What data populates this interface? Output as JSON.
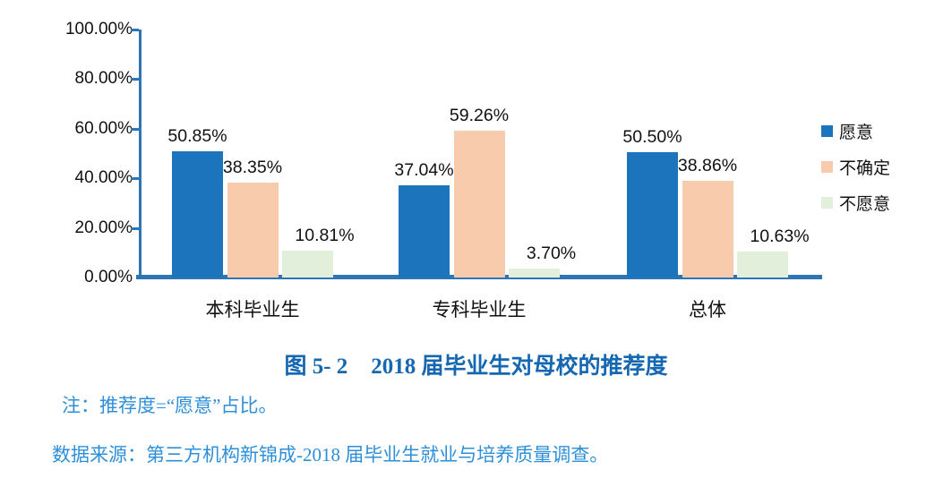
{
  "chart_data": {
    "type": "bar",
    "title": "图 5- 2　2018 届毕业生对母校的推荐度",
    "categories": [
      "本科毕业生",
      "专科毕业生",
      "总体"
    ],
    "series": [
      {
        "name": "愿意",
        "color": "#1B74BC",
        "values": [
          50.85,
          37.04,
          50.5
        ],
        "labels": [
          "50.85%",
          "37.04%",
          "50.50%"
        ]
      },
      {
        "name": "不确定",
        "color": "#F8CBAD",
        "values": [
          38.35,
          59.26,
          38.86
        ],
        "labels": [
          "38.35%",
          "59.26%",
          "38.86%"
        ]
      },
      {
        "name": "不愿意",
        "color": "#E2EFDA",
        "values": [
          10.81,
          3.7,
          10.63
        ],
        "labels": [
          "10.81%",
          "3.70%",
          "10.63%"
        ]
      }
    ],
    "y_axis": {
      "min": 0,
      "max": 100,
      "step": 20,
      "tick_labels": [
        "100.00%",
        "80.00%",
        "60.00%",
        "40.00%",
        "20.00%",
        "0.00%"
      ]
    },
    "legend": {
      "position": "right",
      "entries": [
        "愿意",
        "不确定",
        "不愿意"
      ]
    },
    "grid": false,
    "axis_color": "#2E75B6",
    "xlabel": "",
    "ylabel": ""
  },
  "caption": {
    "number": "图 5- 2",
    "text": "2018 届毕业生对母校的推荐度",
    "color": "#1467B0"
  },
  "notes": {
    "note": "注：推荐度=“愿意”占比。",
    "source": "数据来源：第三方机构新锦成-2018 届毕业生就业与培养质量调查。",
    "color": "#2E8FD8"
  }
}
